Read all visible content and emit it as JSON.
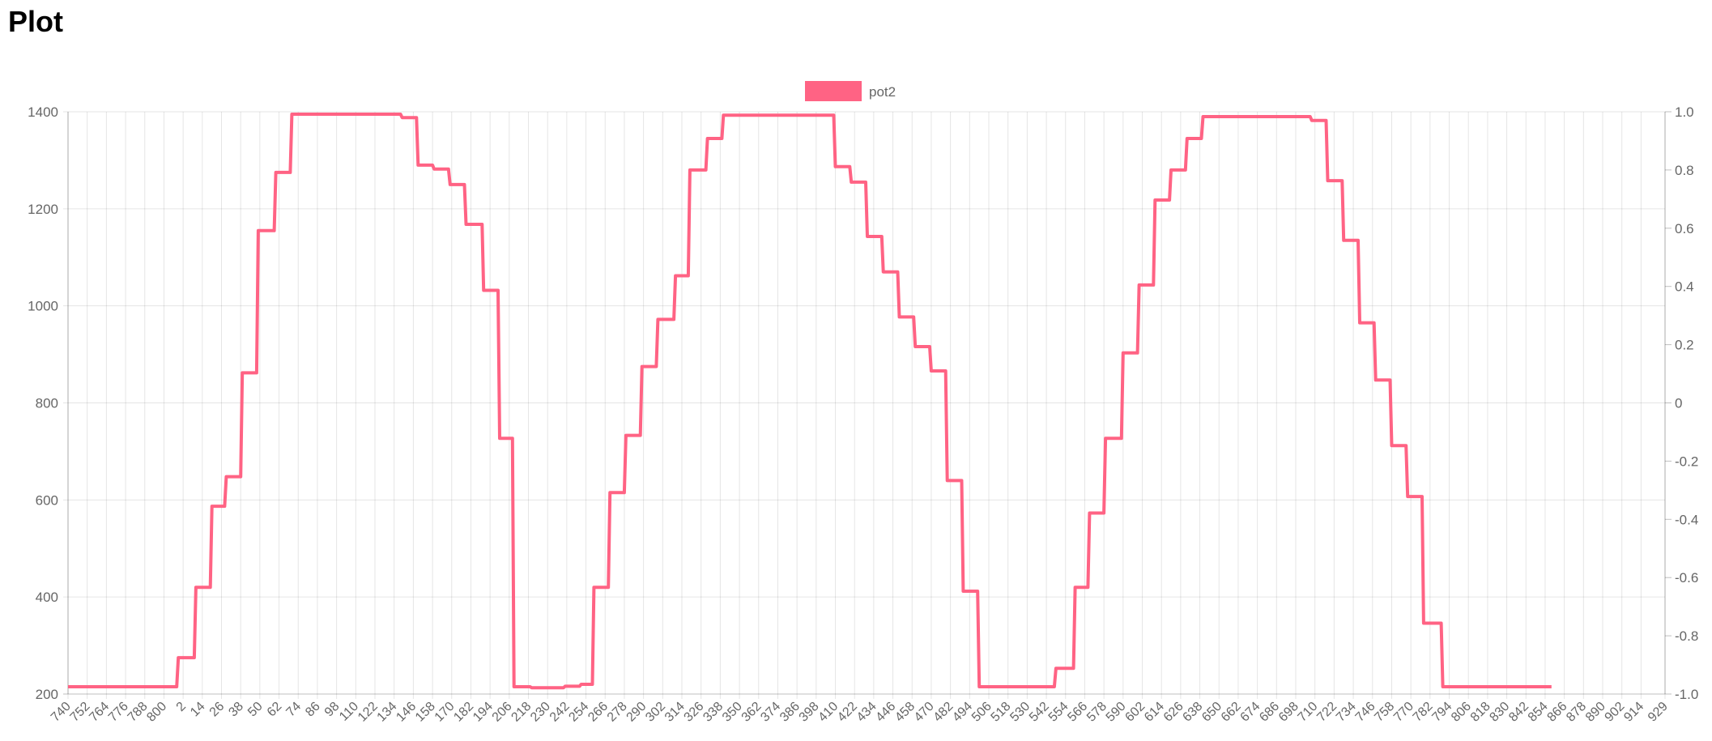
{
  "page": {
    "title": "Plot"
  },
  "chart_data": {
    "type": "line",
    "title": "",
    "legend": {
      "position": "top",
      "entries": [
        "pot2"
      ]
    },
    "grid": true,
    "x_tick_labels": [
      "740",
      "752",
      "764",
      "776",
      "788",
      "800",
      "2",
      "14",
      "26",
      "38",
      "50",
      "62",
      "74",
      "86",
      "98",
      "110",
      "122",
      "134",
      "146",
      "158",
      "170",
      "182",
      "194",
      "206",
      "218",
      "230",
      "242",
      "254",
      "266",
      "278",
      "290",
      "302",
      "314",
      "326",
      "338",
      "350",
      "362",
      "374",
      "386",
      "398",
      "410",
      "422",
      "434",
      "446",
      "458",
      "470",
      "482",
      "494",
      "506",
      "518",
      "530",
      "542",
      "554",
      "566",
      "578",
      "590",
      "602",
      "614",
      "626",
      "638",
      "650",
      "662",
      "674",
      "686",
      "698",
      "710",
      "722",
      "734",
      "746",
      "758",
      "770",
      "782",
      "794",
      "806",
      "818",
      "830",
      "842",
      "854",
      "866",
      "878",
      "890",
      "902",
      "914",
      "929"
    ],
    "y_left": {
      "range": [
        200,
        1400
      ],
      "ticks": [
        "200",
        "400",
        "600",
        "800",
        "1000",
        "1200",
        "1400"
      ]
    },
    "y_right": {
      "range": [
        -1.0,
        1.0
      ],
      "ticks": [
        "-1.0",
        "-0.8",
        "-0.6",
        "-0.4",
        "-0.2",
        "0",
        "0.2",
        "0.4",
        "0.6",
        "0.8",
        "1.0"
      ]
    },
    "series": [
      {
        "name": "pot2",
        "color": "#ff6384",
        "x_labels_sequence": "740-809 then 0-929",
        "runs": [
          {
            "value": 215,
            "count": 69
          },
          {
            "value": 275,
            "count": 11
          },
          {
            "value": 420,
            "count": 10
          },
          {
            "value": 587,
            "count": 9
          },
          {
            "value": 648,
            "count": 10
          },
          {
            "value": 862,
            "count": 10
          },
          {
            "value": 1155,
            "count": 11
          },
          {
            "value": 1275,
            "count": 10
          },
          {
            "value": 1395,
            "count": 69
          },
          {
            "value": 1388,
            "count": 10
          },
          {
            "value": 1290,
            "count": 10
          },
          {
            "value": 1282,
            "count": 10
          },
          {
            "value": 1250,
            "count": 10
          },
          {
            "value": 1168,
            "count": 11
          },
          {
            "value": 1032,
            "count": 10
          },
          {
            "value": 727,
            "count": 9
          },
          {
            "value": 215,
            "count": 11
          },
          {
            "value": 213,
            "count": 21
          },
          {
            "value": 216,
            "count": 10
          },
          {
            "value": 220,
            "count": 8
          },
          {
            "value": 420,
            "count": 10
          },
          {
            "value": 615,
            "count": 10
          },
          {
            "value": 733,
            "count": 10
          },
          {
            "value": 875,
            "count": 10
          },
          {
            "value": 972,
            "count": 11
          },
          {
            "value": 1062,
            "count": 9
          },
          {
            "value": 1280,
            "count": 11
          },
          {
            "value": 1345,
            "count": 10
          },
          {
            "value": 1393,
            "count": 70
          },
          {
            "value": 1287,
            "count": 10
          },
          {
            "value": 1255,
            "count": 10
          },
          {
            "value": 1143,
            "count": 10
          },
          {
            "value": 1070,
            "count": 10
          },
          {
            "value": 977,
            "count": 10
          },
          {
            "value": 916,
            "count": 10
          },
          {
            "value": 866,
            "count": 10
          },
          {
            "value": 640,
            "count": 10
          },
          {
            "value": 412,
            "count": 10
          },
          {
            "value": 215,
            "count": 48
          },
          {
            "value": 253,
            "count": 12
          },
          {
            "value": 420,
            "count": 9
          },
          {
            "value": 573,
            "count": 10
          },
          {
            "value": 727,
            "count": 11
          },
          {
            "value": 903,
            "count": 10
          },
          {
            "value": 1043,
            "count": 10
          },
          {
            "value": 1218,
            "count": 10
          },
          {
            "value": 1280,
            "count": 10
          },
          {
            "value": 1345,
            "count": 10
          },
          {
            "value": 1390,
            "count": 68
          },
          {
            "value": 1382,
            "count": 10
          },
          {
            "value": 1258,
            "count": 10
          },
          {
            "value": 1135,
            "count": 10
          },
          {
            "value": 965,
            "count": 10
          },
          {
            "value": 847,
            "count": 10
          },
          {
            "value": 712,
            "count": 10
          },
          {
            "value": 607,
            "count": 10
          },
          {
            "value": 346,
            "count": 12
          },
          {
            "value": 215,
            "count": 69
          }
        ]
      }
    ]
  }
}
